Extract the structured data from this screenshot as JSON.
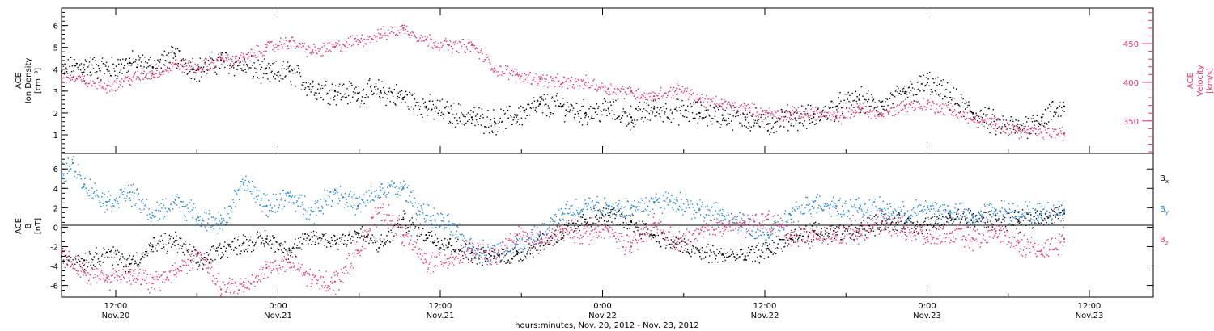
{
  "colors": {
    "black": "#000000",
    "pink": "#e8336b",
    "blue": "#1f86e0",
    "axis": "#000000"
  },
  "footer": {
    "title": "hours:minutes, Nov. 20, 2012 - Nov. 23, 2012"
  },
  "chart_data": [
    {
      "type": "scatter",
      "ylabel_left": [
        "ACE",
        "Ion Density",
        "[cm⁻³]"
      ],
      "ylabel_right": [
        "ACE",
        "Velocity",
        "[km/s]"
      ],
      "x_range_hours": [
        0,
        88
      ],
      "ylim_left": [
        0.15,
        6.8
      ],
      "ylim_right": [
        308,
        496
      ],
      "left_ticks": [
        "1",
        "2",
        "3",
        "4",
        "5",
        "6"
      ],
      "right_ticks": [
        "350",
        "400",
        "450"
      ],
      "series": [
        {
          "axis": "left",
          "color": "black",
          "points": [
            [
              0,
              3.9
            ],
            [
              2,
              4.2
            ],
            [
              4,
              4.0
            ],
            [
              6,
              4.3
            ],
            [
              8,
              4.1
            ],
            [
              10,
              4.6
            ],
            [
              12,
              4.0
            ],
            [
              14,
              4.4
            ],
            [
              16,
              4.2
            ],
            [
              18,
              3.8
            ],
            [
              20,
              3.9
            ],
            [
              22,
              3.2
            ],
            [
              24,
              3.0
            ],
            [
              26,
              2.9
            ],
            [
              28,
              3.0
            ],
            [
              30,
              2.7
            ],
            [
              32,
              2.3
            ],
            [
              34,
              2.0
            ],
            [
              36,
              1.8
            ],
            [
              38,
              1.6
            ],
            [
              40,
              1.9
            ],
            [
              42,
              2.4
            ],
            [
              44,
              2.3
            ],
            [
              46,
              2.0
            ],
            [
              48,
              2.2
            ],
            [
              50,
              1.8
            ],
            [
              52,
              2.2
            ],
            [
              54,
              2.1
            ],
            [
              56,
              2.0
            ],
            [
              58,
              1.9
            ],
            [
              60,
              1.8
            ],
            [
              62,
              1.5
            ],
            [
              64,
              1.9
            ],
            [
              66,
              1.8
            ],
            [
              68,
              2.3
            ],
            [
              70,
              2.6
            ],
            [
              72,
              2.3
            ],
            [
              74,
              2.9
            ],
            [
              76,
              3.4
            ],
            [
              78,
              2.7
            ],
            [
              80,
              2.0
            ],
            [
              82,
              1.5
            ],
            [
              84,
              1.3
            ],
            [
              86,
              1.8
            ],
            [
              88,
              2.3
            ]
          ]
        },
        {
          "axis": "right",
          "color": "pink",
          "points": [
            [
              0,
              408
            ],
            [
              2,
              402
            ],
            [
              4,
              396
            ],
            [
              6,
              405
            ],
            [
              8,
              412
            ],
            [
              10,
              424
            ],
            [
              12,
              418
            ],
            [
              14,
              430
            ],
            [
              16,
              432
            ],
            [
              18,
              445
            ],
            [
              20,
              453
            ],
            [
              22,
              440
            ],
            [
              24,
              446
            ],
            [
              26,
              455
            ],
            [
              28,
              462
            ],
            [
              30,
              470
            ],
            [
              32,
              455
            ],
            [
              34,
              448
            ],
            [
              36,
              448
            ],
            [
              38,
              418
            ],
            [
              40,
              410
            ],
            [
              42,
              404
            ],
            [
              44,
              400
            ],
            [
              46,
              400
            ],
            [
              48,
              392
            ],
            [
              50,
              388
            ],
            [
              52,
              382
            ],
            [
              54,
              392
            ],
            [
              56,
              378
            ],
            [
              58,
              372
            ],
            [
              60,
              366
            ],
            [
              62,
              360
            ],
            [
              64,
              358
            ],
            [
              66,
              362
            ],
            [
              68,
              354
            ],
            [
              70,
              366
            ],
            [
              72,
              358
            ],
            [
              74,
              370
            ],
            [
              76,
              372
            ],
            [
              78,
              364
            ],
            [
              80,
              352
            ],
            [
              82,
              346
            ],
            [
              84,
              338
            ],
            [
              86,
              336
            ],
            [
              88,
              334
            ]
          ]
        }
      ]
    },
    {
      "type": "scatter",
      "ylabel_left": [
        "ACE",
        "B",
        "[nT]"
      ],
      "x_range_hours": [
        0,
        88
      ],
      "ylim": [
        -7.2,
        7.6
      ],
      "ticks": [
        "-6",
        "-4",
        "-2",
        "0",
        "2",
        "4",
        "6"
      ],
      "legend": [
        {
          "label": "B",
          "sub": "x",
          "color": "black"
        },
        {
          "label": "B",
          "sub": "y",
          "color": "blue"
        },
        {
          "label": "B",
          "sub": "z",
          "color": "pink"
        }
      ],
      "series": [
        {
          "name": "Bx",
          "color": "black",
          "points": [
            [
              0,
              -3.0
            ],
            [
              2,
              -3.4
            ],
            [
              4,
              -2.6
            ],
            [
              6,
              -3.8
            ],
            [
              8,
              -2.0
            ],
            [
              10,
              -1.4
            ],
            [
              12,
              -3.6
            ],
            [
              14,
              -2.2
            ],
            [
              16,
              -1.6
            ],
            [
              18,
              -1.2
            ],
            [
              20,
              -2.4
            ],
            [
              22,
              -1.0
            ],
            [
              24,
              -1.4
            ],
            [
              26,
              -0.6
            ],
            [
              28,
              -1.8
            ],
            [
              30,
              0.8
            ],
            [
              32,
              -0.8
            ],
            [
              34,
              -1.6
            ],
            [
              36,
              -2.6
            ],
            [
              38,
              -3.0
            ],
            [
              40,
              -2.8
            ],
            [
              42,
              -1.6
            ],
            [
              44,
              -0.6
            ],
            [
              46,
              0.8
            ],
            [
              48,
              1.2
            ],
            [
              50,
              0.6
            ],
            [
              52,
              -0.8
            ],
            [
              54,
              -1.8
            ],
            [
              56,
              -2.6
            ],
            [
              58,
              -2.8
            ],
            [
              60,
              -3.0
            ],
            [
              62,
              -2.2
            ],
            [
              64,
              -1.2
            ],
            [
              66,
              -0.4
            ],
            [
              68,
              -0.8
            ],
            [
              70,
              -0.2
            ],
            [
              72,
              0.6
            ],
            [
              74,
              0.4
            ],
            [
              76,
              0.2
            ],
            [
              78,
              1.0
            ],
            [
              80,
              1.0
            ],
            [
              82,
              0.8
            ],
            [
              84,
              0.6
            ],
            [
              86,
              1.2
            ],
            [
              88,
              1.4
            ]
          ]
        },
        {
          "name": "By",
          "color": "blue",
          "points": [
            [
              0,
              5.6
            ],
            [
              1,
              6.6
            ],
            [
              2,
              4.4
            ],
            [
              4,
              2.6
            ],
            [
              6,
              3.6
            ],
            [
              8,
              1.2
            ],
            [
              10,
              2.8
            ],
            [
              12,
              1.0
            ],
            [
              14,
              0.4
            ],
            [
              16,
              4.6
            ],
            [
              18,
              2.2
            ],
            [
              20,
              3.2
            ],
            [
              22,
              1.6
            ],
            [
              24,
              3.8
            ],
            [
              26,
              2.2
            ],
            [
              28,
              3.8
            ],
            [
              30,
              4.0
            ],
            [
              32,
              1.2
            ],
            [
              34,
              0.2
            ],
            [
              36,
              -2.2
            ],
            [
              38,
              -2.6
            ],
            [
              40,
              -1.8
            ],
            [
              42,
              -0.8
            ],
            [
              44,
              1.4
            ],
            [
              46,
              2.4
            ],
            [
              48,
              2.2
            ],
            [
              50,
              2.0
            ],
            [
              52,
              2.6
            ],
            [
              54,
              2.8
            ],
            [
              56,
              1.8
            ],
            [
              58,
              1.2
            ],
            [
              60,
              0.2
            ],
            [
              62,
              -0.8
            ],
            [
              64,
              1.2
            ],
            [
              66,
              2.6
            ],
            [
              68,
              2.2
            ],
            [
              70,
              2.0
            ],
            [
              72,
              1.8
            ],
            [
              74,
              1.4
            ],
            [
              76,
              2.0
            ],
            [
              78,
              1.6
            ],
            [
              80,
              1.0
            ],
            [
              82,
              1.8
            ],
            [
              84,
              1.6
            ],
            [
              86,
              1.4
            ],
            [
              88,
              1.8
            ]
          ]
        },
        {
          "name": "Bz",
          "color": "pink",
          "points": [
            [
              0,
              -2.6
            ],
            [
              2,
              -4.6
            ],
            [
              4,
              -5.2
            ],
            [
              6,
              -4.6
            ],
            [
              8,
              -5.8
            ],
            [
              10,
              -4.4
            ],
            [
              12,
              -2.6
            ],
            [
              14,
              -6.4
            ],
            [
              16,
              -6.0
            ],
            [
              18,
              -4.2
            ],
            [
              20,
              -3.6
            ],
            [
              22,
              -5.4
            ],
            [
              24,
              -5.6
            ],
            [
              26,
              -2.4
            ],
            [
              28,
              2.0
            ],
            [
              30,
              -0.8
            ],
            [
              32,
              -3.6
            ],
            [
              34,
              -3.2
            ],
            [
              36,
              -2.4
            ],
            [
              38,
              -3.2
            ],
            [
              40,
              -0.8
            ],
            [
              42,
              -1.6
            ],
            [
              44,
              -0.2
            ],
            [
              46,
              -0.6
            ],
            [
              48,
              -0.4
            ],
            [
              50,
              -2.0
            ],
            [
              52,
              0.4
            ],
            [
              54,
              -1.6
            ],
            [
              56,
              -0.6
            ],
            [
              58,
              0.4
            ],
            [
              60,
              0.2
            ],
            [
              62,
              0.8
            ],
            [
              64,
              -0.8
            ],
            [
              66,
              -1.0
            ],
            [
              68,
              -0.8
            ],
            [
              70,
              -0.4
            ],
            [
              72,
              0.6
            ],
            [
              74,
              -0.2
            ],
            [
              76,
              -1.0
            ],
            [
              78,
              -0.6
            ],
            [
              80,
              -1.2
            ],
            [
              82,
              -0.4
            ],
            [
              84,
              -1.6
            ],
            [
              86,
              -2.4
            ],
            [
              88,
              -1.2
            ]
          ]
        }
      ]
    }
  ],
  "x_axis": {
    "time_labels": [
      "12:00",
      "0:00",
      "12:00",
      "0:00",
      "12:00",
      "0:00",
      "12:00"
    ],
    "date_labels": [
      "Nov.20",
      "Nov.21",
      "Nov.21",
      "Nov.22",
      "Nov.22",
      "Nov.23",
      "Nov.23"
    ]
  }
}
